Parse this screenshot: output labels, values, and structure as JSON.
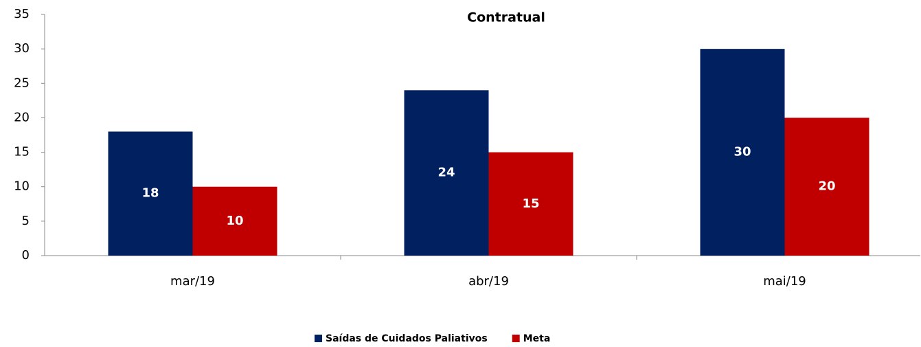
{
  "chart_data": {
    "type": "bar",
    "title": "Contratual",
    "categories": [
      "mar/19",
      "abr/19",
      "mai/19"
    ],
    "series": [
      {
        "name": "Saídas de Cuidados Paliativos",
        "color": "#002060",
        "values": [
          18,
          24,
          30
        ]
      },
      {
        "name": "Meta",
        "color": "#c00000",
        "values": [
          10,
          15,
          20
        ]
      }
    ],
    "ylim": [
      0,
      35
    ],
    "yticks": [
      0,
      5,
      10,
      15,
      20,
      25,
      30,
      35
    ],
    "grid": false,
    "legend": "bottom"
  }
}
